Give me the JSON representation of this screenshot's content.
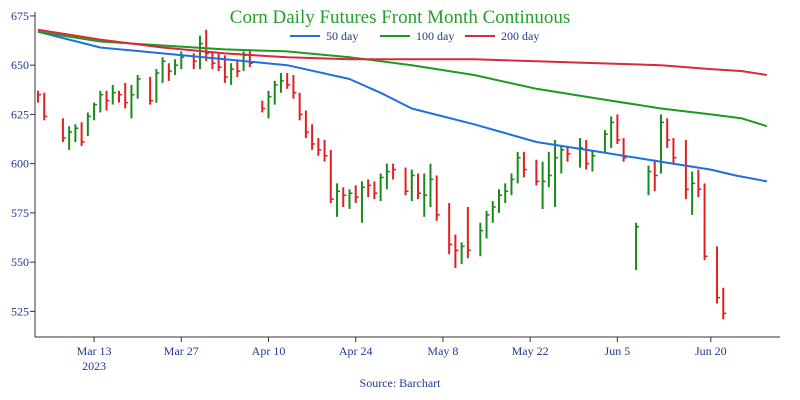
{
  "chart_data": {
    "type": "line",
    "title": "Corn Daily Futures Front Month Continuous",
    "source": "Source: Barchart",
    "ylim": [
      512,
      677
    ],
    "y_ticks": [
      525,
      550,
      575,
      600,
      625,
      650,
      675
    ],
    "x_ticks": [
      {
        "label": "Mar 13",
        "sublabel": "2023",
        "day": 9
      },
      {
        "label": "Mar 27",
        "sublabel": "",
        "day": 23
      },
      {
        "label": "Apr 10",
        "sublabel": "",
        "day": 37
      },
      {
        "label": "Apr 24",
        "sublabel": "",
        "day": 51
      },
      {
        "label": "May 8",
        "sublabel": "",
        "day": 65
      },
      {
        "label": "May 22",
        "sublabel": "",
        "day": 79
      },
      {
        "label": "Jun 5",
        "sublabel": "",
        "day": 93
      },
      {
        "label": "Jun 20",
        "sublabel": "",
        "day": 108
      }
    ],
    "legend_position": "top-right",
    "series": [
      {
        "name": "50 day",
        "color": "#1f6fe0",
        "points": [
          [
            0,
            667
          ],
          [
            5,
            663
          ],
          [
            10,
            659
          ],
          [
            20,
            656
          ],
          [
            30,
            653
          ],
          [
            40,
            650
          ],
          [
            50,
            643
          ],
          [
            55,
            636
          ],
          [
            60,
            628
          ],
          [
            70,
            620
          ],
          [
            80,
            611
          ],
          [
            90,
            606
          ],
          [
            100,
            601
          ],
          [
            108,
            597
          ],
          [
            112,
            594
          ],
          [
            117,
            591
          ]
        ]
      },
      {
        "name": "100 day",
        "color": "#1f9a1f",
        "points": [
          [
            0,
            667
          ],
          [
            10,
            662
          ],
          [
            20,
            660
          ],
          [
            30,
            658
          ],
          [
            40,
            657
          ],
          [
            50,
            654
          ],
          [
            60,
            650
          ],
          [
            70,
            645
          ],
          [
            80,
            638
          ],
          [
            90,
            633
          ],
          [
            100,
            628
          ],
          [
            108,
            625
          ],
          [
            113,
            623
          ],
          [
            117,
            619
          ]
        ]
      },
      {
        "name": "200 day",
        "color": "#d62a3e",
        "points": [
          [
            0,
            668
          ],
          [
            10,
            663
          ],
          [
            20,
            659
          ],
          [
            30,
            656
          ],
          [
            40,
            654
          ],
          [
            50,
            653
          ],
          [
            60,
            653
          ],
          [
            70,
            653
          ],
          [
            80,
            652
          ],
          [
            90,
            651
          ],
          [
            100,
            650
          ],
          [
            108,
            648
          ],
          [
            113,
            647
          ],
          [
            117,
            645
          ]
        ]
      }
    ],
    "bars_up_color": "#1a8a1a",
    "bars_down_color": "#e02020",
    "bars": [
      {
        "d": 0,
        "h": 637,
        "l": 631,
        "c": 635,
        "up": false
      },
      {
        "d": 1,
        "h": 636,
        "l": 622,
        "c": 624,
        "up": false
      },
      {
        "d": 4,
        "h": 623,
        "l": 611,
        "c": 613,
        "up": false
      },
      {
        "d": 5,
        "h": 619,
        "l": 607,
        "c": 616,
        "up": true
      },
      {
        "d": 6,
        "h": 620,
        "l": 611,
        "c": 618,
        "up": true
      },
      {
        "d": 7,
        "h": 621,
        "l": 609,
        "c": 611,
        "up": false
      },
      {
        "d": 8,
        "h": 626,
        "l": 614,
        "c": 624,
        "up": true
      },
      {
        "d": 9,
        "h": 631,
        "l": 622,
        "c": 630,
        "up": true
      },
      {
        "d": 10,
        "h": 637,
        "l": 626,
        "c": 635,
        "up": true
      },
      {
        "d": 11,
        "h": 637,
        "l": 627,
        "c": 632,
        "up": false
      },
      {
        "d": 12,
        "h": 640,
        "l": 630,
        "c": 636,
        "up": true
      },
      {
        "d": 13,
        "h": 637,
        "l": 631,
        "c": 635,
        "up": false
      },
      {
        "d": 14,
        "h": 641,
        "l": 628,
        "c": 631,
        "up": false
      },
      {
        "d": 15,
        "h": 640,
        "l": 623,
        "c": 635,
        "up": true
      },
      {
        "d": 16,
        "h": 645,
        "l": 633,
        "c": 643,
        "up": true
      },
      {
        "d": 18,
        "h": 644,
        "l": 630,
        "c": 632,
        "up": false
      },
      {
        "d": 19,
        "h": 648,
        "l": 631,
        "c": 646,
        "up": true
      },
      {
        "d": 20,
        "h": 654,
        "l": 641,
        "c": 652,
        "up": true
      },
      {
        "d": 21,
        "h": 651,
        "l": 642,
        "c": 647,
        "up": false
      },
      {
        "d": 22,
        "h": 653,
        "l": 645,
        "c": 650,
        "up": true
      },
      {
        "d": 23,
        "h": 657,
        "l": 648,
        "c": 654,
        "up": true
      },
      {
        "d": 25,
        "h": 656,
        "l": 648,
        "c": 652,
        "up": false
      },
      {
        "d": 26,
        "h": 665,
        "l": 648,
        "c": 661,
        "up": true
      },
      {
        "d": 27,
        "h": 668,
        "l": 652,
        "c": 656,
        "up": false
      },
      {
        "d": 28,
        "h": 657,
        "l": 648,
        "c": 651,
        "up": false
      },
      {
        "d": 29,
        "h": 656,
        "l": 647,
        "c": 649,
        "up": false
      },
      {
        "d": 30,
        "h": 655,
        "l": 641,
        "c": 644,
        "up": false
      },
      {
        "d": 31,
        "h": 651,
        "l": 640,
        "c": 648,
        "up": true
      },
      {
        "d": 32,
        "h": 653,
        "l": 644,
        "c": 647,
        "up": false
      },
      {
        "d": 33,
        "h": 657,
        "l": 647,
        "c": 655,
        "up": true
      },
      {
        "d": 34,
        "h": 658,
        "l": 649,
        "c": 651,
        "up": false
      },
      {
        "d": 36,
        "h": 632,
        "l": 626,
        "c": 628,
        "up": false
      },
      {
        "d": 37,
        "h": 637,
        "l": 623,
        "c": 634,
        "up": true
      },
      {
        "d": 38,
        "h": 642,
        "l": 630,
        "c": 640,
        "up": true
      },
      {
        "d": 39,
        "h": 646,
        "l": 636,
        "c": 642,
        "up": true
      },
      {
        "d": 40,
        "h": 646,
        "l": 638,
        "c": 640,
        "up": false
      },
      {
        "d": 41,
        "h": 645,
        "l": 633,
        "c": 636,
        "up": false
      },
      {
        "d": 42,
        "h": 636,
        "l": 622,
        "c": 625,
        "up": false
      },
      {
        "d": 43,
        "h": 627,
        "l": 613,
        "c": 616,
        "up": false
      },
      {
        "d": 44,
        "h": 620,
        "l": 607,
        "c": 610,
        "up": false
      },
      {
        "d": 45,
        "h": 613,
        "l": 604,
        "c": 607,
        "up": false
      },
      {
        "d": 46,
        "h": 612,
        "l": 601,
        "c": 604,
        "up": false
      },
      {
        "d": 47,
        "h": 607,
        "l": 580,
        "c": 582,
        "up": false
      },
      {
        "d": 48,
        "h": 590,
        "l": 573,
        "c": 586,
        "up": true
      },
      {
        "d": 49,
        "h": 588,
        "l": 578,
        "c": 584,
        "up": false
      },
      {
        "d": 50,
        "h": 587,
        "l": 577,
        "c": 585,
        "up": true
      },
      {
        "d": 51,
        "h": 589,
        "l": 580,
        "c": 583,
        "up": false
      },
      {
        "d": 52,
        "h": 591,
        "l": 570,
        "c": 588,
        "up": true
      },
      {
        "d": 53,
        "h": 592,
        "l": 583,
        "c": 589,
        "up": false
      },
      {
        "d": 54,
        "h": 591,
        "l": 582,
        "c": 585,
        "up": false
      },
      {
        "d": 55,
        "h": 595,
        "l": 581,
        "c": 593,
        "up": true
      },
      {
        "d": 56,
        "h": 600,
        "l": 587,
        "c": 596,
        "up": true
      },
      {
        "d": 57,
        "h": 600,
        "l": 592,
        "c": 597,
        "up": false
      },
      {
        "d": 59,
        "h": 598,
        "l": 584,
        "c": 586,
        "up": false
      },
      {
        "d": 60,
        "h": 597,
        "l": 581,
        "c": 594,
        "up": true
      },
      {
        "d": 61,
        "h": 595,
        "l": 582,
        "c": 585,
        "up": false
      },
      {
        "d": 62,
        "h": 595,
        "l": 573,
        "c": 584,
        "up": true
      },
      {
        "d": 63,
        "h": 600,
        "l": 578,
        "c": 592,
        "up": true
      },
      {
        "d": 64,
        "h": 594,
        "l": 571,
        "c": 574,
        "up": false
      },
      {
        "d": 66,
        "h": 580,
        "l": 554,
        "c": 559,
        "up": false
      },
      {
        "d": 67,
        "h": 564,
        "l": 547,
        "c": 556,
        "up": false
      },
      {
        "d": 68,
        "h": 560,
        "l": 549,
        "c": 558,
        "up": true
      },
      {
        "d": 69,
        "h": 578,
        "l": 552,
        "c": 556,
        "up": false
      },
      {
        "d": 71,
        "h": 570,
        "l": 553,
        "c": 566,
        "up": true
      },
      {
        "d": 72,
        "h": 576,
        "l": 562,
        "c": 574,
        "up": true
      },
      {
        "d": 73,
        "h": 581,
        "l": 570,
        "c": 578,
        "up": true
      },
      {
        "d": 74,
        "h": 587,
        "l": 575,
        "c": 584,
        "up": true
      },
      {
        "d": 75,
        "h": 590,
        "l": 580,
        "c": 586,
        "up": true
      },
      {
        "d": 76,
        "h": 595,
        "l": 584,
        "c": 592,
        "up": true
      },
      {
        "d": 77,
        "h": 606,
        "l": 590,
        "c": 603,
        "up": true
      },
      {
        "d": 78,
        "h": 606,
        "l": 593,
        "c": 597,
        "up": false
      },
      {
        "d": 80,
        "h": 602,
        "l": 589,
        "c": 591,
        "up": false
      },
      {
        "d": 81,
        "h": 601,
        "l": 577,
        "c": 591,
        "up": true
      },
      {
        "d": 82,
        "h": 606,
        "l": 588,
        "c": 594,
        "up": true
      },
      {
        "d": 83,
        "h": 612,
        "l": 578,
        "c": 603,
        "up": true
      },
      {
        "d": 84,
        "h": 609,
        "l": 595,
        "c": 607,
        "up": true
      },
      {
        "d": 85,
        "h": 609,
        "l": 601,
        "c": 605,
        "up": false
      },
      {
        "d": 87,
        "h": 613,
        "l": 598,
        "c": 608,
        "up": true
      },
      {
        "d": 88,
        "h": 612,
        "l": 597,
        "c": 600,
        "up": false
      },
      {
        "d": 89,
        "h": 607,
        "l": 596,
        "c": 604,
        "up": true
      },
      {
        "d": 91,
        "h": 617,
        "l": 606,
        "c": 615,
        "up": true
      },
      {
        "d": 92,
        "h": 624,
        "l": 608,
        "c": 621,
        "up": true
      },
      {
        "d": 93,
        "h": 625,
        "l": 610,
        "c": 612,
        "up": false
      },
      {
        "d": 94,
        "h": 613,
        "l": 601,
        "c": 603,
        "up": false
      },
      {
        "d": 96,
        "h": 570,
        "l": 546,
        "c": 568,
        "up": true
      },
      {
        "d": 98,
        "h": 599,
        "l": 584,
        "c": 596,
        "up": true
      },
      {
        "d": 99,
        "h": 602,
        "l": 586,
        "c": 594,
        "up": false
      },
      {
        "d": 100,
        "h": 625,
        "l": 595,
        "c": 621,
        "up": true
      },
      {
        "d": 101,
        "h": 623,
        "l": 608,
        "c": 612,
        "up": false
      },
      {
        "d": 102,
        "h": 613,
        "l": 600,
        "c": 603,
        "up": false
      },
      {
        "d": 104,
        "h": 612,
        "l": 582,
        "c": 587,
        "up": false
      },
      {
        "d": 105,
        "h": 596,
        "l": 574,
        "c": 590,
        "up": true
      },
      {
        "d": 106,
        "h": 597,
        "l": 583,
        "c": 587,
        "up": false
      },
      {
        "d": 107,
        "h": 590,
        "l": 551,
        "c": 553,
        "up": false
      },
      {
        "d": 109,
        "h": 558,
        "l": 529,
        "c": 532,
        "up": false
      },
      {
        "d": 110,
        "h": 537,
        "l": 521,
        "c": 524,
        "up": false
      }
    ]
  }
}
